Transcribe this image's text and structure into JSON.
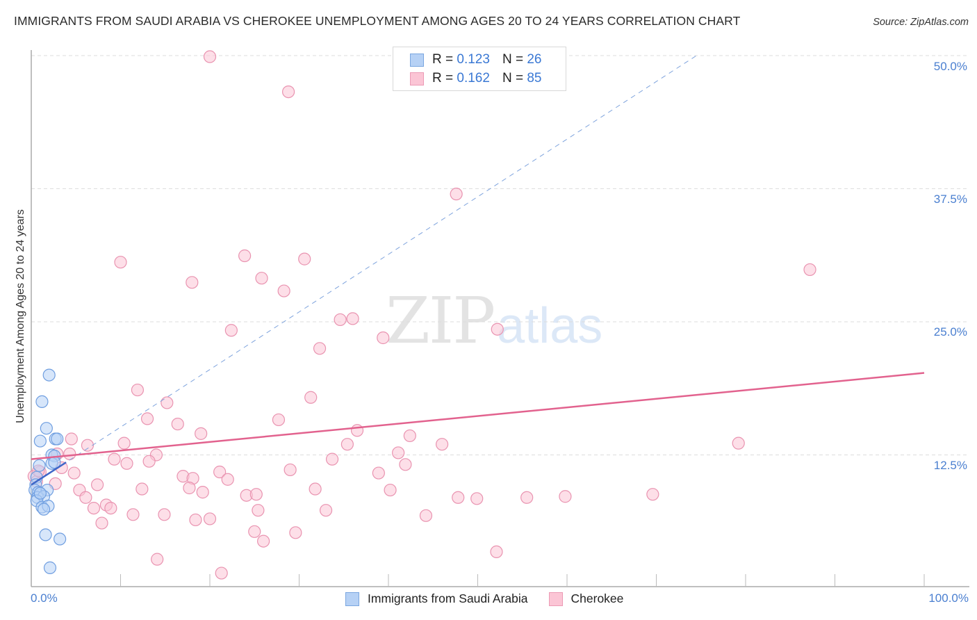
{
  "header": {
    "title": "IMMIGRANTS FROM SAUDI ARABIA VS CHEROKEE UNEMPLOYMENT AMONG AGES 20 TO 24 YEARS CORRELATION CHART",
    "source": "Source: ZipAtlas.com"
  },
  "watermark": {
    "zip": "ZIP",
    "atlas": "atlas"
  },
  "axes": {
    "ylabel": "Unemployment Among Ages 20 to 24 years",
    "yticks": [
      "50.0%",
      "37.5%",
      "25.0%",
      "12.5%"
    ],
    "xticks": {
      "left": "0.0%",
      "right": "100.0%"
    }
  },
  "legend_top": {
    "rows": [
      {
        "r_label": "R =",
        "r_value": "0.123",
        "n_label": "N =",
        "n_value": "26"
      },
      {
        "r_label": "R =",
        "r_value": "0.162",
        "n_label": "N =",
        "n_value": "85"
      }
    ]
  },
  "legend_bottom": {
    "items": [
      {
        "label": "Immigrants from Saudi Arabia"
      },
      {
        "label": "Cherokee"
      }
    ]
  },
  "colors": {
    "blue_fill": "#b6d1f5",
    "blue_stroke": "#6f9ee0",
    "blue_line": "#3f67c8",
    "pink_fill": "#fbc5d5",
    "pink_stroke": "#e993b0",
    "pink_line": "#e2628e",
    "tick_text": "#4a7fd0",
    "grid": "#dddddd"
  },
  "chart_data": {
    "type": "scatter",
    "title": "IMMIGRANTS FROM SAUDI ARABIA VS CHEROKEE UNEMPLOYMENT AMONG AGES 20 TO 24 YEARS CORRELATION CHART",
    "xlabel": "",
    "ylabel": "Unemployment Among Ages 20 to 24 years",
    "xlim": [
      0,
      100
    ],
    "ylim": [
      0,
      50
    ],
    "x_tick_labels": [
      "0.0%",
      "100.0%"
    ],
    "y_tick_labels": [
      "12.5%",
      "25.0%",
      "37.5%",
      "50.0%"
    ],
    "grid": true,
    "legend_position": "top-center and bottom",
    "series": [
      {
        "name": "Immigrants from Saudi Arabia",
        "R": 0.123,
        "N": 26,
        "trend": {
          "x": [
            0,
            3.9
          ],
          "y": [
            9.7,
            11.8
          ],
          "extended_dashed": {
            "x": [
              0,
              74.5
            ],
            "y": [
              9.7,
              50.0
            ]
          }
        },
        "points": [
          [
            2.0,
            20.0
          ],
          [
            1.2,
            17.5
          ],
          [
            1.7,
            15.0
          ],
          [
            1.0,
            13.8
          ],
          [
            2.7,
            14.0
          ],
          [
            2.9,
            14.0
          ],
          [
            2.3,
            12.5
          ],
          [
            2.6,
            12.4
          ],
          [
            2.3,
            11.7
          ],
          [
            2.6,
            11.8
          ],
          [
            0.9,
            11.5
          ],
          [
            0.6,
            10.4
          ],
          [
            0.5,
            9.7
          ],
          [
            0.4,
            9.2
          ],
          [
            0.8,
            9.0
          ],
          [
            1.8,
            9.2
          ],
          [
            0.7,
            8.5
          ],
          [
            1.4,
            8.6
          ],
          [
            0.6,
            8.2
          ],
          [
            1.2,
            7.6
          ],
          [
            1.9,
            7.7
          ],
          [
            1.4,
            7.4
          ],
          [
            1.6,
            5.0
          ],
          [
            3.2,
            4.6
          ],
          [
            2.1,
            1.9
          ],
          [
            1.0,
            8.9
          ]
        ]
      },
      {
        "name": "Cherokee",
        "R": 0.162,
        "N": 85,
        "trend": {
          "x": [
            0,
            100
          ],
          "y": [
            12.1,
            20.2
          ]
        },
        "points": [
          [
            20.0,
            49.9
          ],
          [
            28.8,
            46.6
          ],
          [
            47.6,
            37.0
          ],
          [
            10.0,
            30.6
          ],
          [
            23.9,
            31.2
          ],
          [
            30.6,
            30.9
          ],
          [
            18.0,
            28.7
          ],
          [
            25.8,
            29.1
          ],
          [
            28.3,
            27.9
          ],
          [
            87.2,
            29.9
          ],
          [
            22.4,
            24.2
          ],
          [
            34.6,
            25.2
          ],
          [
            36.0,
            25.3
          ],
          [
            52.2,
            24.3
          ],
          [
            32.3,
            22.5
          ],
          [
            39.4,
            23.5
          ],
          [
            11.9,
            18.6
          ],
          [
            31.3,
            17.9
          ],
          [
            15.2,
            17.4
          ],
          [
            13.0,
            15.9
          ],
          [
            16.4,
            15.4
          ],
          [
            27.7,
            15.8
          ],
          [
            19.0,
            14.5
          ],
          [
            36.5,
            14.8
          ],
          [
            4.5,
            14.0
          ],
          [
            6.3,
            13.4
          ],
          [
            10.4,
            13.6
          ],
          [
            35.4,
            13.5
          ],
          [
            42.4,
            14.3
          ],
          [
            46.0,
            13.5
          ],
          [
            79.2,
            13.6
          ],
          [
            4.3,
            12.6
          ],
          [
            14.0,
            12.5
          ],
          [
            9.3,
            12.1
          ],
          [
            10.7,
            11.7
          ],
          [
            13.2,
            11.9
          ],
          [
            33.7,
            12.1
          ],
          [
            41.1,
            12.7
          ],
          [
            41.9,
            11.6
          ],
          [
            3.4,
            11.3
          ],
          [
            4.8,
            10.8
          ],
          [
            21.1,
            10.9
          ],
          [
            29.0,
            11.1
          ],
          [
            38.9,
            10.8
          ],
          [
            17.0,
            10.5
          ],
          [
            18.1,
            10.3
          ],
          [
            22.0,
            10.2
          ],
          [
            0.3,
            10.5
          ],
          [
            0.6,
            10.0
          ],
          [
            2.7,
            9.8
          ],
          [
            7.4,
            9.7
          ],
          [
            5.4,
            9.2
          ],
          [
            12.4,
            9.3
          ],
          [
            17.7,
            9.4
          ],
          [
            19.2,
            9.0
          ],
          [
            31.8,
            9.3
          ],
          [
            40.2,
            9.2
          ],
          [
            6.1,
            8.5
          ],
          [
            24.1,
            8.7
          ],
          [
            25.2,
            8.8
          ],
          [
            47.8,
            8.5
          ],
          [
            49.9,
            8.4
          ],
          [
            55.5,
            8.5
          ],
          [
            59.8,
            8.6
          ],
          [
            69.6,
            8.8
          ],
          [
            7.0,
            7.5
          ],
          [
            8.4,
            7.8
          ],
          [
            8.9,
            7.5
          ],
          [
            11.4,
            6.9
          ],
          [
            14.9,
            6.9
          ],
          [
            25.4,
            7.3
          ],
          [
            33.0,
            7.3
          ],
          [
            7.9,
            6.1
          ],
          [
            18.4,
            6.4
          ],
          [
            20.0,
            6.5
          ],
          [
            44.2,
            6.8
          ],
          [
            25.0,
            5.3
          ],
          [
            29.6,
            5.2
          ],
          [
            26.0,
            4.4
          ],
          [
            52.1,
            3.4
          ],
          [
            14.1,
            2.7
          ],
          [
            21.3,
            1.4
          ],
          [
            1.0,
            10.9
          ],
          [
            0.8,
            11.0
          ],
          [
            2.9,
            12.6
          ]
        ]
      }
    ]
  }
}
